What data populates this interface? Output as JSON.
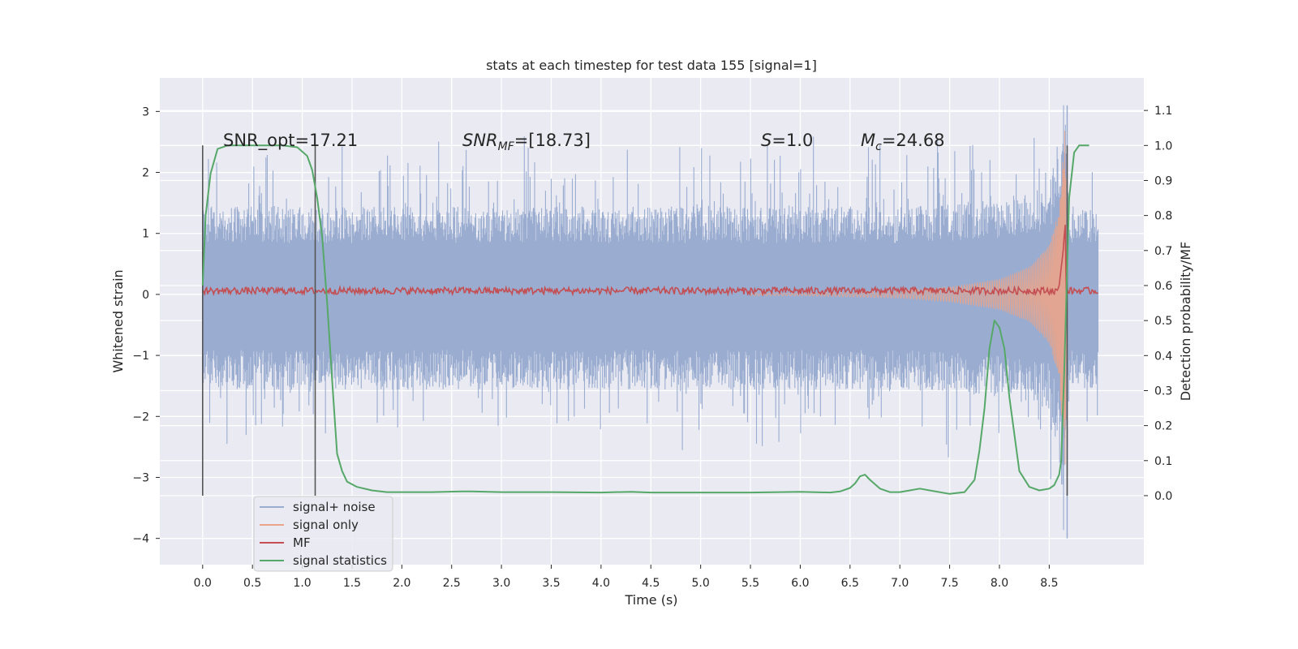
{
  "chart_data": {
    "type": "line",
    "title": "stats at each timestep for test data 155 [signal=1]",
    "xlabel": "Time (s)",
    "ylabel_left": "Whitened strain",
    "ylabel_right": "Detection probability/MF",
    "xlim": [
      -0.43,
      9.45
    ],
    "ylim_left": [
      -4.43,
      3.55
    ],
    "ylim_right": [
      -0.197,
      1.193
    ],
    "x_ticks": [
      0.0,
      0.5,
      1.0,
      1.5,
      2.0,
      2.5,
      3.0,
      3.5,
      4.0,
      4.5,
      5.0,
      5.5,
      6.0,
      6.5,
      7.0,
      7.5,
      8.0,
      8.5
    ],
    "x_tick_labels": [
      "0.0",
      "0.5",
      "1.0",
      "1.5",
      "2.0",
      "2.5",
      "3.0",
      "3.5",
      "4.0",
      "4.5",
      "5.0",
      "5.5",
      "6.0",
      "6.5",
      "7.0",
      "7.5",
      "8.0",
      "8.5"
    ],
    "y_left_ticks": [
      3,
      2,
      1,
      0,
      -1,
      -2,
      -3,
      -4
    ],
    "y_left_tick_labels": [
      "3",
      "2",
      "1",
      "0",
      "−1",
      "−2",
      "−3",
      "−4"
    ],
    "y_right_ticks": [
      1.1,
      1.0,
      0.9,
      0.8,
      0.7,
      0.6,
      0.5,
      0.4,
      0.3,
      0.2,
      0.1,
      0.0
    ],
    "y_right_tick_labels": [
      "1.1",
      "1.0",
      "0.9",
      "0.8",
      "0.7",
      "0.6",
      "0.5",
      "0.4",
      "0.3",
      "0.2",
      "0.1",
      "0.0"
    ],
    "grid": true,
    "legend_position": "lower-left",
    "annotations": {
      "snr_opt": "SNR_opt=17.21",
      "snr_mf_base": "SNR",
      "snr_mf_sub": "MF",
      "snr_mf_rest": "=[18.73]",
      "s_var": "S",
      "s_rest": "=1.0",
      "mc_var": "M",
      "mc_sub": "c",
      "mc_rest": "=24.68"
    },
    "vertical_markers_x": [
      0.0,
      1.13,
      8.68
    ],
    "series": [
      {
        "name": "signal+ noise",
        "color": "#9aadd1",
        "axis": "left",
        "x_range": [
          0.0,
          8.99
        ],
        "noise_envelope_upper": [
          [
            0.0,
            1.2
          ],
          [
            1.0,
            1.2
          ],
          [
            2.0,
            1.2
          ],
          [
            3.0,
            1.2
          ],
          [
            4.0,
            1.2
          ],
          [
            5.0,
            1.2
          ],
          [
            6.0,
            1.2
          ],
          [
            7.0,
            1.2
          ],
          [
            8.0,
            1.3
          ],
          [
            8.5,
            1.5
          ],
          [
            8.62,
            2.3
          ],
          [
            8.66,
            2.8
          ],
          [
            8.7,
            1.2
          ],
          [
            8.99,
            1.2
          ]
        ],
        "noise_envelope_lower": [
          [
            0.0,
            -1.3
          ],
          [
            1.0,
            -1.3
          ],
          [
            2.0,
            -1.3
          ],
          [
            3.0,
            -1.3
          ],
          [
            4.0,
            -1.3
          ],
          [
            5.0,
            -1.3
          ],
          [
            6.0,
            -1.3
          ],
          [
            7.0,
            -1.3
          ],
          [
            8.0,
            -1.4
          ],
          [
            8.5,
            -1.6
          ],
          [
            8.62,
            -2.4
          ],
          [
            8.66,
            -3.0
          ],
          [
            8.7,
            -1.3
          ],
          [
            8.99,
            -1.3
          ]
        ],
        "peak_max": 3.1,
        "peak_min": -4.0
      },
      {
        "name": "signal only",
        "color": "#e9a48a",
        "axis": "left",
        "description_points": [
          [
            6.0,
            0.02
          ],
          [
            7.0,
            0.06
          ],
          [
            7.5,
            0.12
          ],
          [
            8.0,
            0.25
          ],
          [
            8.3,
            0.45
          ],
          [
            8.5,
            0.8
          ],
          [
            8.6,
            1.4
          ],
          [
            8.66,
            2.95
          ],
          [
            8.68,
            0.0
          ]
        ]
      },
      {
        "name": "MF",
        "color": "#c44e52",
        "axis": "right",
        "baseline": 0.585,
        "jitter": 0.01,
        "x_range": [
          0.0,
          8.99
        ],
        "spike": [
          [
            8.6,
            0.6
          ],
          [
            8.64,
            0.7
          ],
          [
            8.66,
            0.78
          ],
          [
            8.67,
            0.6
          ]
        ]
      },
      {
        "name": "signal statistics",
        "color": "#55a868",
        "axis": "right",
        "x": [
          0.0,
          0.03,
          0.08,
          0.15,
          0.25,
          0.4,
          0.6,
          0.8,
          0.95,
          1.05,
          1.1,
          1.15,
          1.2,
          1.25,
          1.3,
          1.35,
          1.4,
          1.45,
          1.55,
          1.7,
          1.85,
          2.0,
          2.3,
          2.6,
          2.7,
          3.0,
          3.5,
          4.0,
          4.3,
          4.5,
          5.0,
          5.5,
          6.0,
          6.3,
          6.4,
          6.5,
          6.55,
          6.6,
          6.65,
          6.7,
          6.8,
          6.9,
          7.0,
          7.1,
          7.2,
          7.3,
          7.5,
          7.65,
          7.75,
          7.8,
          7.85,
          7.9,
          7.95,
          8.0,
          8.05,
          8.1,
          8.2,
          8.3,
          8.4,
          8.5,
          8.55,
          8.6,
          8.62,
          8.65,
          8.7,
          8.75,
          8.8,
          8.9
        ],
        "y": [
          0.6,
          0.8,
          0.92,
          0.99,
          1.0,
          1.0,
          1.0,
          1.0,
          0.995,
          0.97,
          0.93,
          0.85,
          0.74,
          0.55,
          0.33,
          0.12,
          0.07,
          0.04,
          0.025,
          0.015,
          0.01,
          0.01,
          0.01,
          0.012,
          0.012,
          0.01,
          0.01,
          0.009,
          0.011,
          0.009,
          0.009,
          0.009,
          0.011,
          0.009,
          0.012,
          0.022,
          0.035,
          0.055,
          0.06,
          0.045,
          0.02,
          0.01,
          0.01,
          0.015,
          0.02,
          0.015,
          0.005,
          0.01,
          0.045,
          0.13,
          0.25,
          0.42,
          0.5,
          0.48,
          0.42,
          0.28,
          0.07,
          0.025,
          0.015,
          0.02,
          0.03,
          0.06,
          0.1,
          0.35,
          0.85,
          0.98,
          1.0,
          1.0
        ]
      }
    ]
  }
}
